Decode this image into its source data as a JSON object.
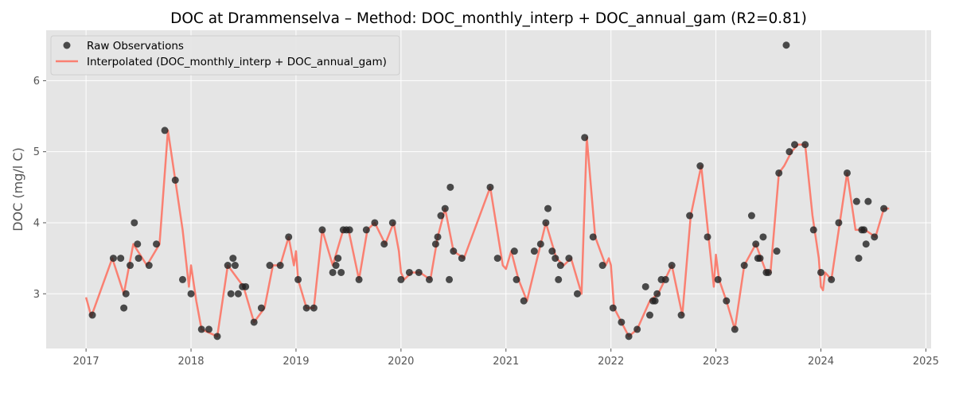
{
  "chart_data": {
    "type": "line",
    "title": "DOC at Drammenselva – Method: DOC_monthly_interp + DOC_annual_gam (R2=0.81)",
    "xlabel": "",
    "ylabel": "DOC (mg/l C)",
    "xlim": [
      2016.62,
      2025.05
    ],
    "ylim": [
      2.23,
      6.71
    ],
    "x_ticks": [
      2017,
      2018,
      2019,
      2020,
      2021,
      2022,
      2023,
      2024,
      2025
    ],
    "y_ticks": [
      3,
      4,
      5,
      6
    ],
    "grid": true,
    "legend_position": "top-left",
    "colors": {
      "raw": "#222222",
      "interp": "#fa8072",
      "axes_bg": "#e5e5e5",
      "grid": "#ffffff",
      "tick_text": "#555555"
    },
    "legend": {
      "raw_label": "Raw Observations",
      "interp_label": "Interpolated (DOC_monthly_interp + DOC_annual_gam)"
    },
    "series": [
      {
        "name": "Raw Observations",
        "kind": "scatter",
        "points": [
          [
            2017.06,
            2.7
          ],
          [
            2017.26,
            3.5
          ],
          [
            2017.33,
            3.5
          ],
          [
            2017.36,
            2.8
          ],
          [
            2017.38,
            3.0
          ],
          [
            2017.42,
            3.4
          ],
          [
            2017.46,
            4.0
          ],
          [
            2017.49,
            3.7
          ],
          [
            2017.5,
            3.5
          ],
          [
            2017.6,
            3.4
          ],
          [
            2017.67,
            3.7
          ],
          [
            2017.75,
            5.3
          ],
          [
            2017.85,
            4.6
          ],
          [
            2017.92,
            3.2
          ],
          [
            2018.0,
            3.0
          ],
          [
            2018.1,
            2.5
          ],
          [
            2018.17,
            2.5
          ],
          [
            2018.25,
            2.4
          ],
          [
            2018.35,
            3.4
          ],
          [
            2018.38,
            3.0
          ],
          [
            2018.4,
            3.5
          ],
          [
            2018.42,
            3.4
          ],
          [
            2018.45,
            3.0
          ],
          [
            2018.49,
            3.1
          ],
          [
            2018.52,
            3.1
          ],
          [
            2018.6,
            2.6
          ],
          [
            2018.67,
            2.8
          ],
          [
            2018.75,
            3.4
          ],
          [
            2018.85,
            3.4
          ],
          [
            2018.93,
            3.8
          ],
          [
            2019.02,
            3.2
          ],
          [
            2019.1,
            2.8
          ],
          [
            2019.17,
            2.8
          ],
          [
            2019.25,
            3.9
          ],
          [
            2019.35,
            3.3
          ],
          [
            2019.38,
            3.4
          ],
          [
            2019.4,
            3.5
          ],
          [
            2019.43,
            3.3
          ],
          [
            2019.45,
            3.9
          ],
          [
            2019.48,
            3.9
          ],
          [
            2019.51,
            3.9
          ],
          [
            2019.6,
            3.2
          ],
          [
            2019.67,
            3.9
          ],
          [
            2019.75,
            4.0
          ],
          [
            2019.84,
            3.7
          ],
          [
            2019.92,
            4.0
          ],
          [
            2020.0,
            3.2
          ],
          [
            2020.08,
            3.3
          ],
          [
            2020.17,
            3.3
          ],
          [
            2020.27,
            3.2
          ],
          [
            2020.33,
            3.7
          ],
          [
            2020.35,
            3.8
          ],
          [
            2020.38,
            4.1
          ],
          [
            2020.42,
            4.2
          ],
          [
            2020.46,
            3.2
          ],
          [
            2020.47,
            4.5
          ],
          [
            2020.5,
            3.6
          ],
          [
            2020.58,
            3.5
          ],
          [
            2020.85,
            4.5
          ],
          [
            2020.92,
            3.5
          ],
          [
            2021.08,
            3.6
          ],
          [
            2021.1,
            3.2
          ],
          [
            2021.17,
            2.9
          ],
          [
            2021.27,
            3.6
          ],
          [
            2021.33,
            3.7
          ],
          [
            2021.38,
            4.0
          ],
          [
            2021.4,
            4.2
          ],
          [
            2021.44,
            3.6
          ],
          [
            2021.47,
            3.5
          ],
          [
            2021.5,
            3.2
          ],
          [
            2021.52,
            3.4
          ],
          [
            2021.6,
            3.5
          ],
          [
            2021.68,
            3.0
          ],
          [
            2021.75,
            5.2
          ],
          [
            2021.83,
            3.8
          ],
          [
            2021.92,
            3.4
          ],
          [
            2022.02,
            2.8
          ],
          [
            2022.1,
            2.6
          ],
          [
            2022.17,
            2.4
          ],
          [
            2022.25,
            2.5
          ],
          [
            2022.33,
            3.1
          ],
          [
            2022.37,
            2.7
          ],
          [
            2022.4,
            2.9
          ],
          [
            2022.42,
            2.9
          ],
          [
            2022.44,
            3.0
          ],
          [
            2022.48,
            3.2
          ],
          [
            2022.52,
            3.2
          ],
          [
            2022.58,
            3.4
          ],
          [
            2022.67,
            2.7
          ],
          [
            2022.75,
            4.1
          ],
          [
            2022.85,
            4.8
          ],
          [
            2022.92,
            3.8
          ],
          [
            2023.02,
            3.2
          ],
          [
            2023.1,
            2.9
          ],
          [
            2023.18,
            2.5
          ],
          [
            2023.27,
            3.4
          ],
          [
            2023.34,
            4.1
          ],
          [
            2023.38,
            3.7
          ],
          [
            2023.4,
            3.5
          ],
          [
            2023.42,
            3.5
          ],
          [
            2023.45,
            3.8
          ],
          [
            2023.48,
            3.3
          ],
          [
            2023.5,
            3.3
          ],
          [
            2023.58,
            3.6
          ],
          [
            2023.6,
            4.7
          ],
          [
            2023.67,
            6.5
          ],
          [
            2023.7,
            5.0
          ],
          [
            2023.75,
            5.1
          ],
          [
            2023.85,
            5.1
          ],
          [
            2023.93,
            3.9
          ],
          [
            2024.0,
            3.3
          ],
          [
            2024.1,
            3.2
          ],
          [
            2024.17,
            4.0
          ],
          [
            2024.25,
            4.7
          ],
          [
            2024.34,
            4.3
          ],
          [
            2024.36,
            3.5
          ],
          [
            2024.39,
            3.9
          ],
          [
            2024.41,
            3.9
          ],
          [
            2024.43,
            3.7
          ],
          [
            2024.45,
            4.3
          ],
          [
            2024.51,
            3.8
          ],
          [
            2024.6,
            4.2
          ]
        ]
      },
      {
        "name": "Interpolated (DOC_monthly_interp + DOC_annual_gam)",
        "kind": "line",
        "points": [
          [
            2017.0,
            2.95
          ],
          [
            2017.05,
            2.68
          ],
          [
            2017.25,
            3.5
          ],
          [
            2017.36,
            3.0
          ],
          [
            2017.45,
            3.7
          ],
          [
            2017.58,
            3.4
          ],
          [
            2017.7,
            3.7
          ],
          [
            2017.78,
            5.3
          ],
          [
            2017.92,
            3.9
          ],
          [
            2017.98,
            3.1
          ],
          [
            2018.0,
            3.4
          ],
          [
            2018.05,
            2.9
          ],
          [
            2018.1,
            2.5
          ],
          [
            2018.25,
            2.4
          ],
          [
            2018.35,
            3.4
          ],
          [
            2018.5,
            3.1
          ],
          [
            2018.6,
            2.6
          ],
          [
            2018.7,
            2.8
          ],
          [
            2018.78,
            3.4
          ],
          [
            2018.85,
            3.4
          ],
          [
            2018.93,
            3.8
          ],
          [
            2018.98,
            3.4
          ],
          [
            2019.0,
            3.6
          ],
          [
            2019.02,
            3.2
          ],
          [
            2019.1,
            2.8
          ],
          [
            2019.17,
            2.8
          ],
          [
            2019.25,
            3.9
          ],
          [
            2019.35,
            3.4
          ],
          [
            2019.45,
            3.9
          ],
          [
            2019.5,
            3.9
          ],
          [
            2019.6,
            3.2
          ],
          [
            2019.68,
            3.9
          ],
          [
            2019.75,
            4.0
          ],
          [
            2019.85,
            3.7
          ],
          [
            2019.93,
            4.0
          ],
          [
            2019.98,
            3.6
          ],
          [
            2020.0,
            3.3
          ],
          [
            2020.03,
            3.2
          ],
          [
            2020.1,
            3.3
          ],
          [
            2020.18,
            3.3
          ],
          [
            2020.28,
            3.2
          ],
          [
            2020.35,
            3.8
          ],
          [
            2020.42,
            4.2
          ],
          [
            2020.5,
            3.6
          ],
          [
            2020.6,
            3.5
          ],
          [
            2020.85,
            4.5
          ],
          [
            2020.97,
            3.4
          ],
          [
            2021.0,
            3.35
          ],
          [
            2021.05,
            3.6
          ],
          [
            2021.12,
            3.2
          ],
          [
            2021.2,
            2.9
          ],
          [
            2021.38,
            4.0
          ],
          [
            2021.48,
            3.5
          ],
          [
            2021.55,
            3.4
          ],
          [
            2021.62,
            3.5
          ],
          [
            2021.72,
            3.0
          ],
          [
            2021.77,
            5.2
          ],
          [
            2021.85,
            3.8
          ],
          [
            2021.95,
            3.4
          ],
          [
            2021.98,
            3.5
          ],
          [
            2022.0,
            3.4
          ],
          [
            2022.03,
            2.8
          ],
          [
            2022.1,
            2.6
          ],
          [
            2022.17,
            2.4
          ],
          [
            2022.25,
            2.5
          ],
          [
            2022.37,
            2.9
          ],
          [
            2022.45,
            3.0
          ],
          [
            2022.58,
            3.4
          ],
          [
            2022.68,
            2.7
          ],
          [
            2022.76,
            4.1
          ],
          [
            2022.86,
            4.8
          ],
          [
            2022.93,
            3.8
          ],
          [
            2022.98,
            3.1
          ],
          [
            2023.0,
            3.55
          ],
          [
            2023.03,
            3.2
          ],
          [
            2023.1,
            2.9
          ],
          [
            2023.18,
            2.5
          ],
          [
            2023.27,
            3.4
          ],
          [
            2023.38,
            3.7
          ],
          [
            2023.48,
            3.3
          ],
          [
            2023.52,
            3.3
          ],
          [
            2023.6,
            4.7
          ],
          [
            2023.65,
            4.8
          ],
          [
            2023.72,
            5.0
          ],
          [
            2023.78,
            5.1
          ],
          [
            2023.85,
            5.1
          ],
          [
            2023.92,
            4.1
          ],
          [
            2023.98,
            3.5
          ],
          [
            2024.0,
            3.1
          ],
          [
            2024.02,
            3.05
          ],
          [
            2024.04,
            3.3
          ],
          [
            2024.1,
            3.2
          ],
          [
            2024.25,
            4.7
          ],
          [
            2024.33,
            3.9
          ],
          [
            2024.42,
            3.9
          ],
          [
            2024.52,
            3.8
          ],
          [
            2024.6,
            4.2
          ],
          [
            2024.65,
            4.2
          ]
        ]
      }
    ]
  }
}
